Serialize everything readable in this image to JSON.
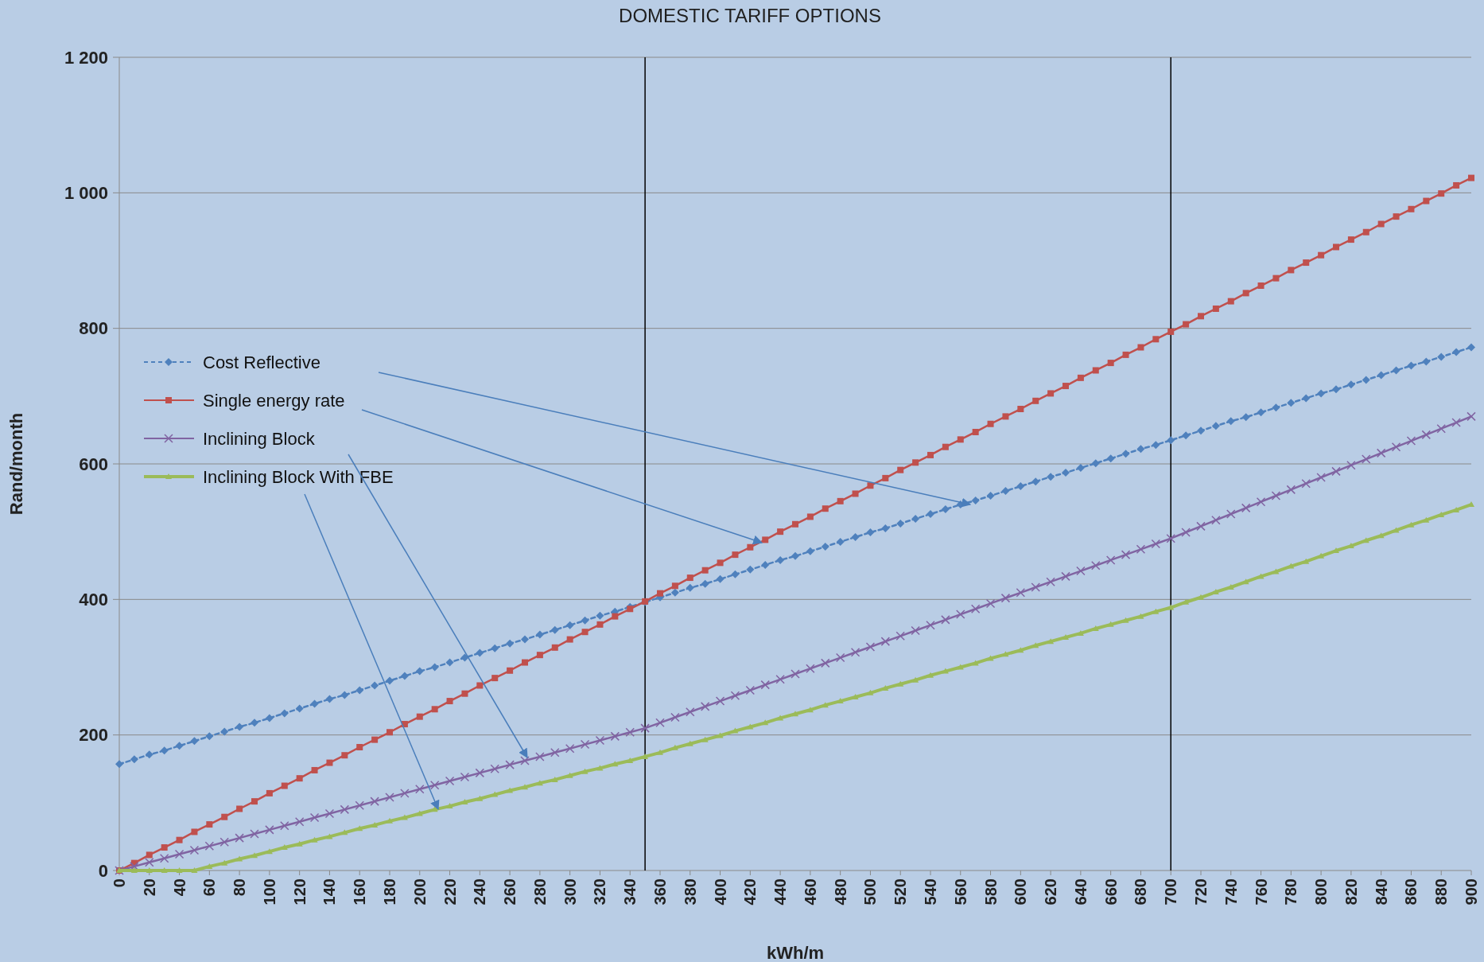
{
  "chart_data": {
    "type": "line",
    "title": "DOMESTIC TARIFF OPTIONS",
    "xlabel": "kWh/m",
    "ylabel": "Rand/month",
    "x": [
      0,
      10,
      20,
      30,
      40,
      50,
      60,
      70,
      80,
      90,
      100,
      110,
      120,
      130,
      140,
      150,
      160,
      170,
      180,
      190,
      200,
      210,
      220,
      230,
      240,
      250,
      260,
      270,
      280,
      290,
      300,
      310,
      320,
      330,
      340,
      350,
      360,
      370,
      380,
      390,
      400,
      410,
      420,
      430,
      440,
      450,
      460,
      470,
      480,
      490,
      500,
      510,
      520,
      530,
      540,
      550,
      560,
      570,
      580,
      590,
      600,
      610,
      620,
      630,
      640,
      650,
      660,
      670,
      680,
      690,
      700,
      710,
      720,
      730,
      740,
      750,
      760,
      770,
      780,
      790,
      800,
      810,
      820,
      830,
      840,
      850,
      860,
      870,
      880,
      890,
      900
    ],
    "series": [
      {
        "name": "Cost Reflective",
        "color": "#4f81bd",
        "marker": "diamond",
        "line_style": "dashed",
        "values": [
          157,
          164,
          171,
          177,
          184,
          191,
          198,
          205,
          212,
          218,
          225,
          232,
          239,
          246,
          253,
          259,
          266,
          273,
          280,
          287,
          294,
          300,
          307,
          314,
          321,
          328,
          335,
          341,
          348,
          355,
          362,
          369,
          376,
          382,
          389,
          396,
          403,
          410,
          417,
          423,
          430,
          437,
          444,
          451,
          458,
          464,
          471,
          478,
          485,
          492,
          499,
          505,
          512,
          519,
          526,
          533,
          540,
          546,
          553,
          560,
          567,
          574,
          581,
          587,
          594,
          601,
          608,
          615,
          622,
          628,
          635,
          642,
          649,
          656,
          663,
          669,
          676,
          683,
          690,
          697,
          704,
          710,
          717,
          724,
          731,
          738,
          745,
          751,
          758,
          765,
          772
        ]
      },
      {
        "name": "Single energy rate",
        "color": "#c0504d",
        "marker": "square",
        "line_style": "solid",
        "values": [
          0,
          11,
          23,
          34,
          45,
          57,
          68,
          79,
          91,
          102,
          114,
          125,
          136,
          148,
          159,
          170,
          182,
          193,
          204,
          216,
          227,
          238,
          250,
          261,
          273,
          284,
          295,
          307,
          318,
          329,
          341,
          352,
          363,
          375,
          386,
          397,
          409,
          420,
          432,
          443,
          454,
          466,
          477,
          488,
          500,
          511,
          522,
          534,
          545,
          556,
          568,
          579,
          591,
          602,
          613,
          625,
          636,
          647,
          659,
          670,
          681,
          693,
          704,
          715,
          727,
          738,
          749,
          761,
          772,
          784,
          795,
          806,
          818,
          829,
          840,
          852,
          863,
          874,
          886,
          897,
          908,
          920,
          931,
          942,
          954,
          965,
          976,
          988,
          999,
          1011,
          1022
        ]
      },
      {
        "name": "Inclining Block",
        "color": "#8064a2",
        "marker": "cross",
        "line_style": "solid",
        "values": [
          0,
          6,
          12,
          18,
          24,
          30,
          36,
          42,
          48,
          54,
          60,
          66,
          72,
          78,
          84,
          90,
          96,
          102,
          108,
          114,
          120,
          126,
          132,
          138,
          144,
          150,
          156,
          162,
          168,
          174,
          180,
          186,
          192,
          198,
          204,
          210,
          218,
          226,
          234,
          242,
          250,
          258,
          266,
          274,
          282,
          290,
          298,
          306,
          314,
          322,
          330,
          338,
          346,
          354,
          362,
          370,
          378,
          386,
          394,
          402,
          410,
          418,
          426,
          434,
          442,
          450,
          458,
          466,
          474,
          482,
          490,
          499,
          508,
          517,
          526,
          535,
          544,
          553,
          562,
          571,
          580,
          589,
          598,
          607,
          616,
          625,
          634,
          643,
          652,
          661,
          670
        ]
      },
      {
        "name": "Inclining Block With FBE",
        "color": "#9bbb59",
        "marker": "triangle",
        "line_style": "solid",
        "values": [
          0,
          0,
          0,
          0,
          0,
          0,
          6,
          11,
          17,
          22,
          28,
          34,
          39,
          45,
          50,
          56,
          62,
          67,
          73,
          78,
          84,
          90,
          95,
          101,
          106,
          112,
          118,
          123,
          129,
          134,
          140,
          146,
          151,
          157,
          162,
          168,
          174,
          181,
          187,
          193,
          199,
          206,
          212,
          218,
          225,
          231,
          237,
          244,
          250,
          256,
          262,
          269,
          275,
          281,
          288,
          294,
          300,
          306,
          313,
          319,
          325,
          332,
          338,
          344,
          350,
          357,
          363,
          369,
          375,
          382,
          388,
          396,
          403,
          411,
          418,
          426,
          434,
          441,
          449,
          456,
          464,
          472,
          479,
          487,
          494,
          502,
          510,
          517,
          525,
          532,
          540
        ]
      }
    ],
    "xlim": [
      0,
      900
    ],
    "xticks": [
      0,
      20,
      40,
      60,
      80,
      100,
      120,
      140,
      160,
      180,
      200,
      220,
      240,
      260,
      280,
      300,
      320,
      340,
      360,
      380,
      400,
      420,
      440,
      460,
      480,
      500,
      520,
      540,
      560,
      580,
      600,
      620,
      640,
      660,
      680,
      700,
      720,
      740,
      760,
      780,
      800,
      820,
      840,
      860,
      880,
      900
    ],
    "ylim": [
      0,
      1200
    ],
    "yticks": [
      0,
      200,
      400,
      600,
      800,
      {
        "value": 1000,
        "label": "1 000"
      },
      {
        "value": 1200,
        "label": "1 200"
      }
    ],
    "ref_lines": [
      {
        "axis": "x",
        "value": 350,
        "color": "#000000"
      },
      {
        "axis": "x",
        "value": 700,
        "color": "#000000"
      }
    ],
    "grid": "y",
    "legend": "left"
  }
}
